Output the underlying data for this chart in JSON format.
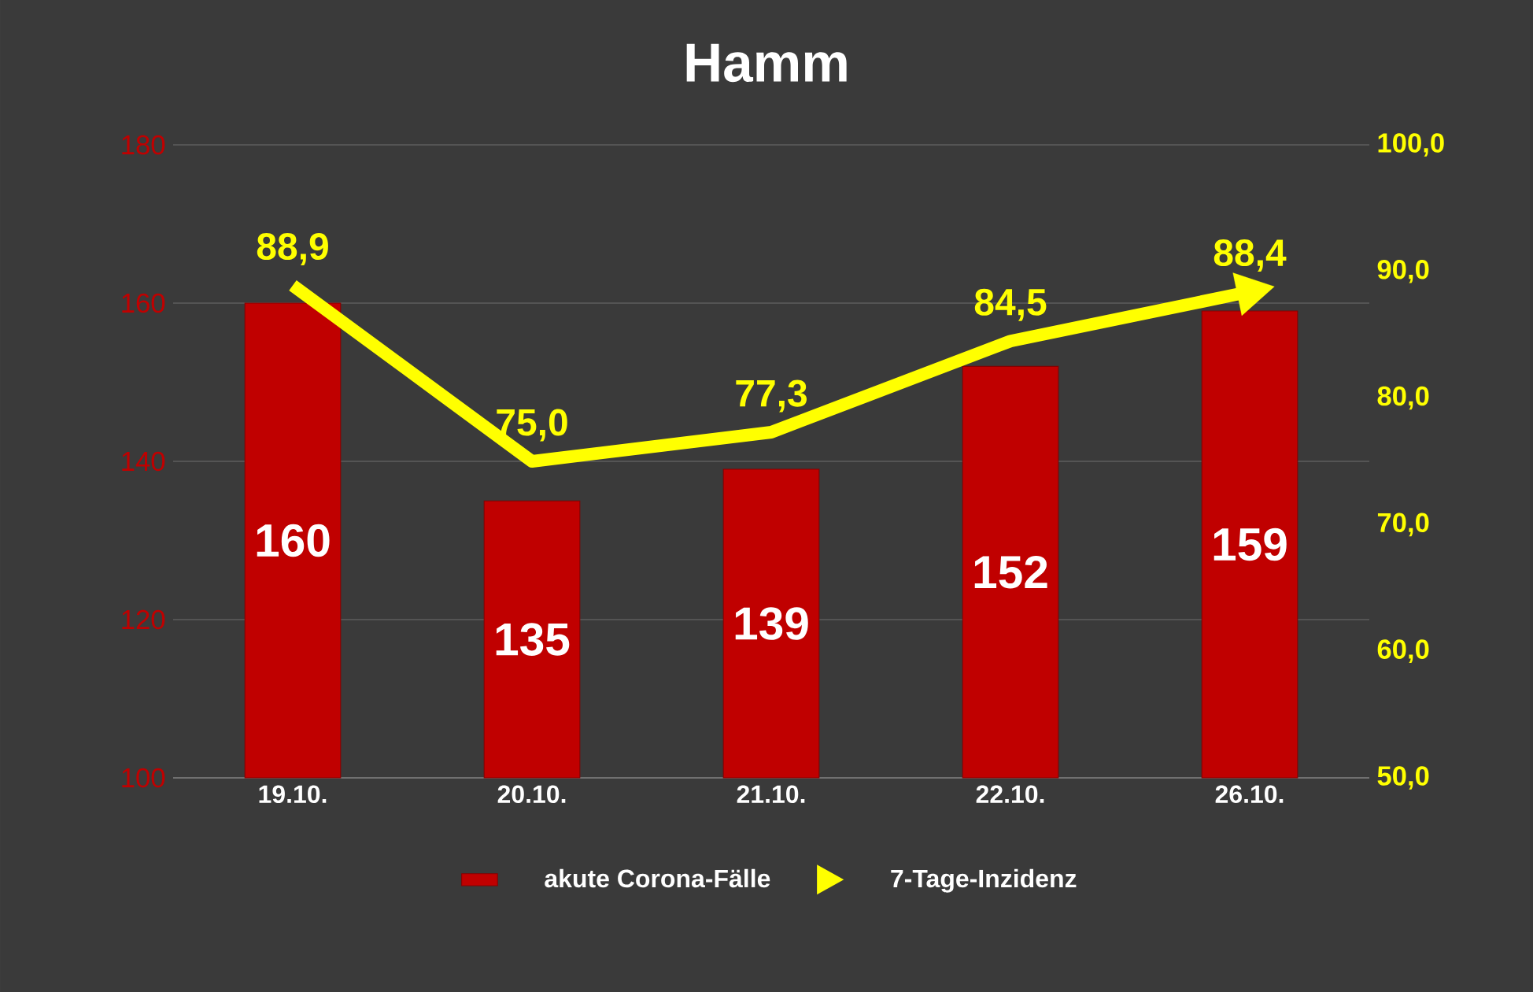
{
  "chart_data": {
    "type": "bar",
    "title": "Hamm",
    "categories": [
      "19.10.",
      "20.10.",
      "21.10.",
      "22.10.",
      "26.10."
    ],
    "series": [
      {
        "name": "akute Corona-Fälle",
        "color": "#c00000",
        "values": [
          160,
          135,
          139,
          152,
          159
        ],
        "value_labels": [
          "160",
          "135",
          "139",
          "152",
          "159"
        ]
      },
      {
        "name": "7-Tage-Inzidenz",
        "type": "line",
        "axis": "y2",
        "color": "#ffff00",
        "values": [
          88.9,
          75.0,
          77.3,
          84.5,
          88.4
        ],
        "value_labels": [
          "88,9",
          "75,0",
          "77,3",
          "84,5",
          "88,4"
        ]
      }
    ],
    "ylim": [
      100,
      180
    ],
    "yticks": [
      100,
      120,
      140,
      160,
      180
    ],
    "y2lim": [
      50,
      100
    ],
    "y2ticks": [
      {
        "value": 50,
        "label": "50,0"
      },
      {
        "value": 60,
        "label": "60,0"
      },
      {
        "value": 70,
        "label": "70,0"
      },
      {
        "value": 80,
        "label": "80,0"
      },
      {
        "value": 90,
        "label": "90,0"
      },
      {
        "value": 100,
        "label": "100,0"
      }
    ],
    "grid": "y",
    "legend": "bottom"
  }
}
